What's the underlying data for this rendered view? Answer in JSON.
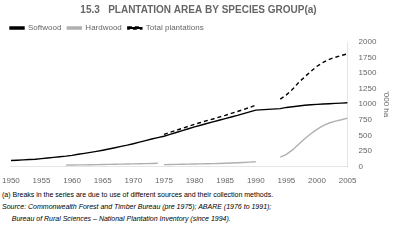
{
  "chart_data": {
    "type": "line",
    "title": "15.3   PLANTATION AREA BY SPECIES GROUP(a)",
    "ylabel": "'000 ha",
    "annotations": [
      "(a) Breaks in the series are due to use of different sources and their collection methods.",
      "Source: Commonwealth Forest and Timber Bureau (pre 1975); ABARE (1976 to 1991);",
      "     Bureau of Rural Sciences – National Plantation Inventory (since 1994)."
    ],
    "xlim": [
      1950,
      2005
    ],
    "xticks": [
      1950,
      1955,
      1960,
      1965,
      1970,
      1975,
      1980,
      1985,
      1990,
      1995,
      2000,
      2005
    ],
    "ylim": [
      0,
      2000
    ],
    "yticks": [
      0,
      250,
      500,
      750,
      1000,
      1250,
      1500,
      1750,
      2000
    ],
    "grid": false,
    "legend": "upper left",
    "series": [
      {
        "name": "Softwood",
        "color": "#000000",
        "line_style": "solid",
        "x": [
          1950,
          1951,
          1952,
          1953,
          1954,
          1955,
          1956,
          1957,
          1958,
          1959,
          1960,
          1961,
          1962,
          1963,
          1964,
          1965,
          1966,
          1967,
          1968,
          1969,
          1970,
          1971,
          1972,
          1973,
          1974,
          1975,
          1976,
          1977,
          1978,
          1979,
          1980,
          1981,
          1982,
          1983,
          1984,
          1985,
          1986,
          1987,
          1988,
          1989,
          1990,
          1994,
          1995,
          1996,
          1997,
          1998,
          1999,
          2000,
          2001,
          2002,
          2003,
          2004,
          2005
        ],
        "values": [
          95,
          100,
          105,
          110,
          115,
          125,
          135,
          145,
          155,
          165,
          178,
          195,
          210,
          225,
          242,
          260,
          280,
          300,
          322,
          342,
          365,
          390,
          415,
          440,
          462,
          485,
          515,
          545,
          575,
          605,
          635,
          662,
          690,
          715,
          742,
          768,
          795,
          820,
          848,
          876,
          905,
          928,
          948,
          960,
          972,
          982,
          990,
          998,
          1003,
          1008,
          1013,
          1018,
          1023
        ]
      },
      {
        "name": "Hardwood",
        "color": "#b0b0b0",
        "line_style": "solid",
        "x": [
          1959,
          1960,
          1961,
          1962,
          1963,
          1964,
          1965,
          1966,
          1967,
          1968,
          1969,
          1970,
          1971,
          1972,
          1973,
          1974,
          null,
          1975,
          1976,
          1977,
          1978,
          1979,
          1980,
          1981,
          1982,
          1983,
          1984,
          1985,
          1986,
          1987,
          1988,
          1989,
          1990,
          null,
          1994,
          1995,
          1996,
          1997,
          1998,
          1999,
          2000,
          2001,
          2002,
          2003,
          2004,
          2005
        ],
        "values": [
          20,
          22,
          24,
          25,
          27,
          29,
          31,
          33,
          35,
          37,
          39,
          41,
          43,
          45,
          47,
          50,
          null,
          28,
          30,
          32,
          34,
          36,
          38,
          40,
          42,
          44,
          47,
          50,
          54,
          58,
          63,
          68,
          75,
          null,
          148,
          195,
          265,
          355,
          445,
          525,
          595,
          655,
          698,
          728,
          750,
          775
        ]
      },
      {
        "name": "Total plantations",
        "color": "#000000",
        "line_style": "dashed",
        "x": [
          1975,
          1976,
          1977,
          1978,
          1979,
          1980,
          1981,
          1982,
          1983,
          1984,
          1985,
          1986,
          1987,
          1988,
          1989,
          1990,
          null,
          1994,
          1995,
          1996,
          1997,
          1998,
          1999,
          2000,
          2001,
          2002,
          2003,
          2004,
          2005
        ],
        "values": [
          515,
          548,
          580,
          612,
          645,
          678,
          706,
          735,
          762,
          792,
          820,
          852,
          882,
          915,
          948,
          985,
          null,
          1082,
          1150,
          1240,
          1348,
          1440,
          1528,
          1610,
          1672,
          1722,
          1755,
          1785,
          1810
        ]
      }
    ]
  }
}
